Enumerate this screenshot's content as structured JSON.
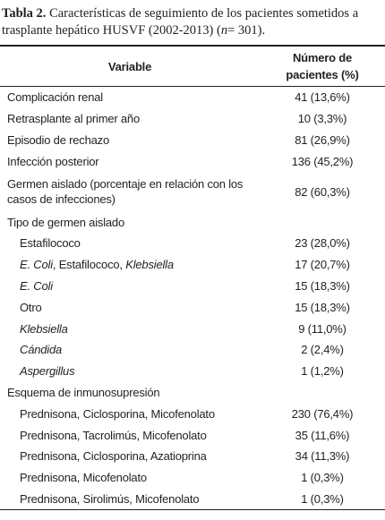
{
  "caption": [
    {
      "text": "Tabla 2.",
      "bold": true
    },
    {
      "text": " Características de seguimiento de los pacientes sometidos a trasplante hepático HUSVF (2002-2013) ("
    },
    {
      "text": "n",
      "italic": true
    },
    {
      "text": "= 301)."
    }
  ],
  "table": {
    "header": [
      "Variable",
      "Número de pacientes (%)"
    ],
    "rows": [
      {
        "label": [
          {
            "text": "Complicación renal"
          }
        ],
        "value": "41 (13,6%)"
      },
      {
        "label": [
          {
            "text": "Retrasplante al primer año"
          }
        ],
        "value": "10 (3,3%)"
      },
      {
        "label": [
          {
            "text": "Episodio de rechazo"
          }
        ],
        "value": "81 (26,9%)"
      },
      {
        "label": [
          {
            "text": "Infección posterior"
          }
        ],
        "value": "136 (45,2%)"
      },
      {
        "label": [
          {
            "text": "Germen aislado (porcentaje en relación con los casos de infecciones)"
          }
        ],
        "value": "82 (60,3%)"
      },
      {
        "label": [
          {
            "text": "Tipo de germen aislado"
          }
        ]
      },
      {
        "label": [
          {
            "text": "Estafilococo"
          }
        ],
        "value": "23 (28,0%)",
        "indent": true
      },
      {
        "label": [
          {
            "text": "E. Coli",
            "italic": true
          },
          {
            "text": ", Estafilococo, "
          },
          {
            "text": "Klebsiella",
            "italic": true
          }
        ],
        "value": "17 (20,7%)",
        "indent": true
      },
      {
        "label": [
          {
            "text": "E. Coli",
            "italic": true
          }
        ],
        "value": "15 (18,3%)",
        "indent": true
      },
      {
        "label": [
          {
            "text": "Otro"
          }
        ],
        "value": "15 (18,3%)",
        "indent": true
      },
      {
        "label": [
          {
            "text": "Klebsiella",
            "italic": true
          }
        ],
        "value": "9 (11,0%)",
        "indent": true
      },
      {
        "label": [
          {
            "text": "Cándida",
            "italic": true
          }
        ],
        "value": "2 (2,4%)",
        "indent": true
      },
      {
        "label": [
          {
            "text": "Aspergillus",
            "italic": true
          }
        ],
        "value": "1 (1,2%)",
        "indent": true
      },
      {
        "label": [
          {
            "text": "Esquema de inmunosupresión"
          }
        ]
      },
      {
        "label": [
          {
            "text": "Prednisona, Ciclosporina, Micofenolato"
          }
        ],
        "value": "230 (76,4%)",
        "indent": true
      },
      {
        "label": [
          {
            "text": "Prednisona, Tacrolimús, Micofenolato"
          }
        ],
        "value": "35 (11,6%)",
        "indent": true
      },
      {
        "label": [
          {
            "text": "Prednisona, Ciclosporina, Azatioprina"
          }
        ],
        "value": "34 (11,3%)",
        "indent": true
      },
      {
        "label": [
          {
            "text": "Prednisona, Micofenolato"
          }
        ],
        "value": "1 (0,3%)",
        "indent": true
      },
      {
        "label": [
          {
            "text": "Prednisona, Sirolimús, Micofenolato"
          }
        ],
        "value": "1 (0,3%)",
        "indent": true
      }
    ]
  }
}
